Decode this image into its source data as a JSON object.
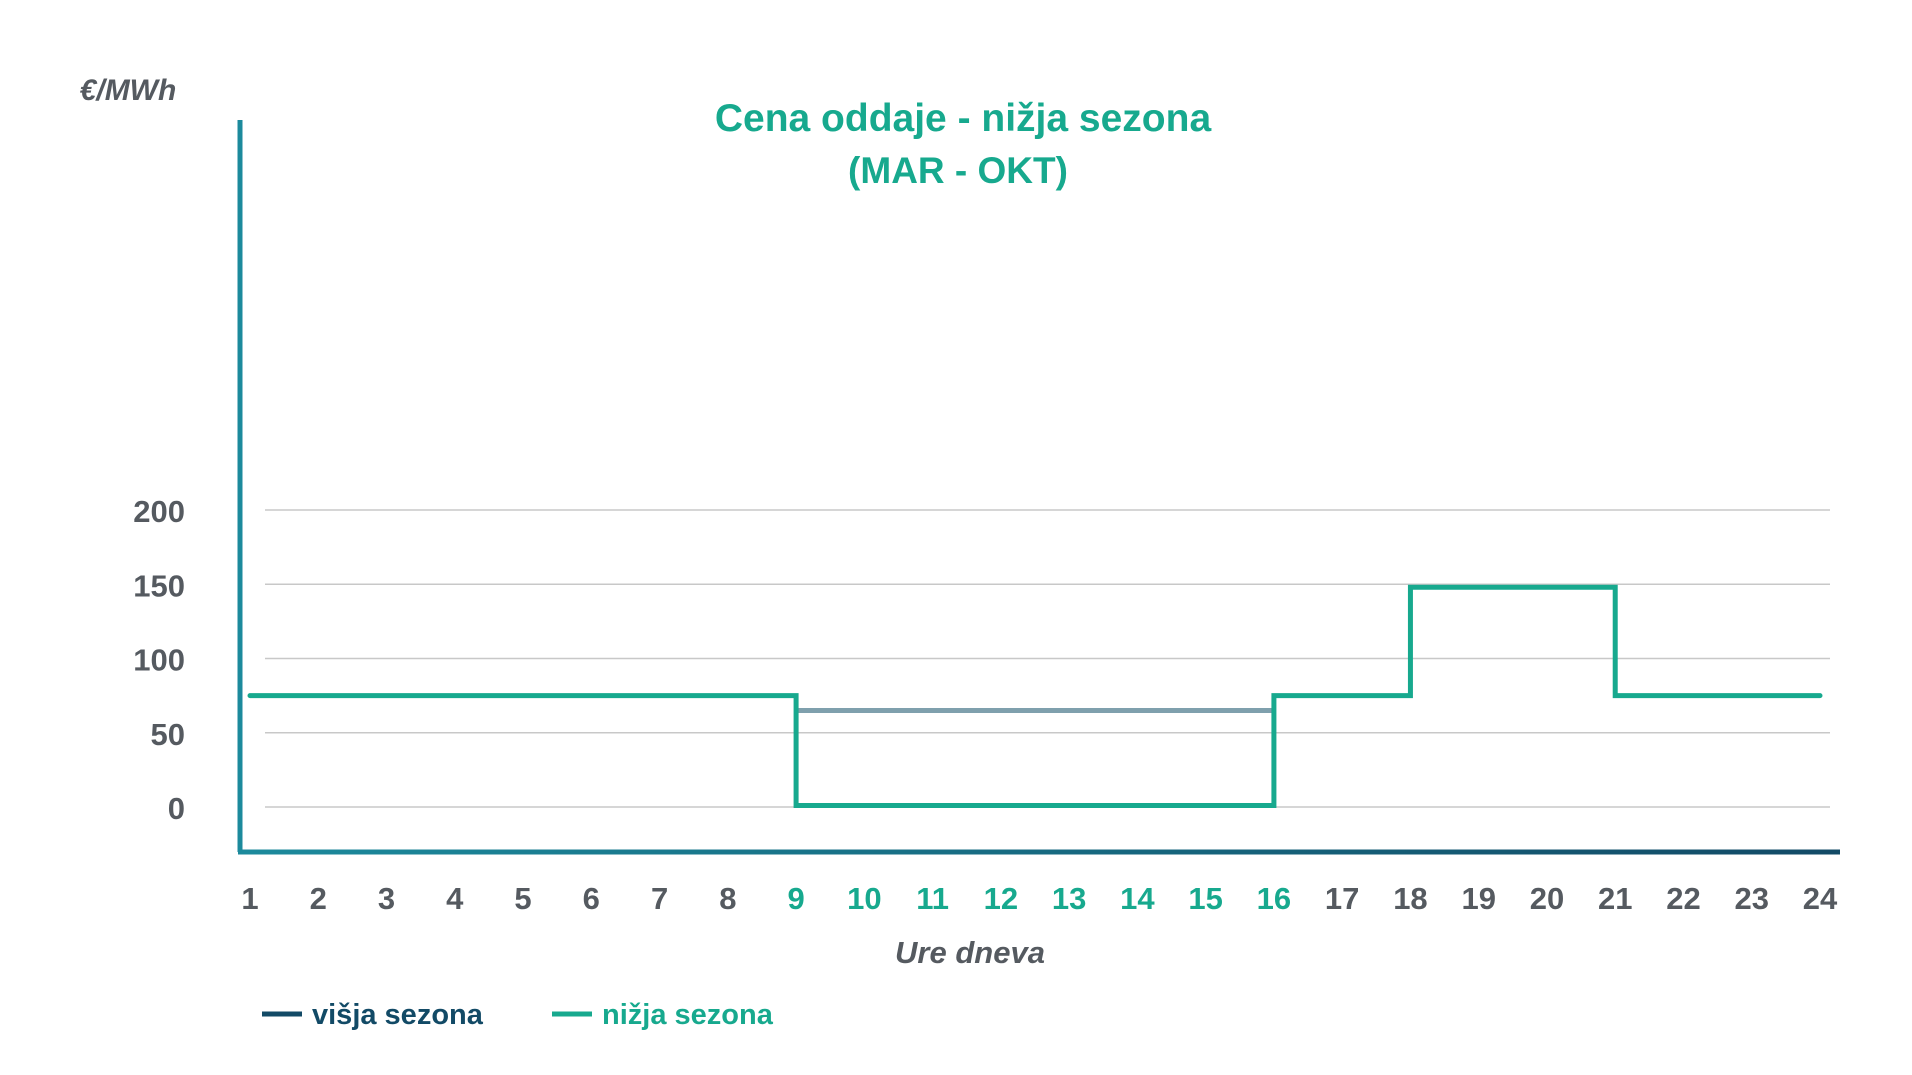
{
  "chart_data": {
    "type": "line",
    "step": true,
    "title": "Cena oddaje - nižja sezona",
    "subtitle": "(MAR - OKT)",
    "ylabel": "€/MWh",
    "xlabel": "Ure dneva",
    "ylim": [
      -15,
      230
    ],
    "yticks": [
      0,
      50,
      100,
      150,
      200
    ],
    "grid": true,
    "x": [
      "1",
      "2",
      "3",
      "4",
      "5",
      "6",
      "7",
      "8",
      "9",
      "10",
      "11",
      "12",
      "13",
      "14",
      "15",
      "16",
      "17",
      "18",
      "19",
      "20",
      "21",
      "22",
      "23",
      "24"
    ],
    "highlighted_x": [
      "9",
      "10",
      "11",
      "12",
      "13",
      "14",
      "15",
      "16"
    ],
    "series": [
      {
        "name": "višja sezona",
        "color": "#7fa0ad",
        "segments": [
          {
            "x_start": "9",
            "x_end": "16",
            "value": 65
          }
        ]
      },
      {
        "name": "nižja sezona",
        "color": "#17a98e",
        "steps": [
          {
            "x_start": "1",
            "x_end": "9",
            "value": 75
          },
          {
            "x_start": "9",
            "x_end": "16",
            "value": 1
          },
          {
            "x_start": "16",
            "x_end": "18",
            "value": 75
          },
          {
            "x_start": "18",
            "x_end": "21",
            "value": 148
          },
          {
            "x_start": "21",
            "x_end": "24",
            "value": 75
          }
        ]
      }
    ],
    "legend": {
      "placement": "bottom-left",
      "entries": [
        {
          "label": "višja sezona",
          "color": "#124a66"
        },
        {
          "label": "nižja sezona",
          "color": "#17a98e"
        }
      ]
    },
    "colors": {
      "title": "#17a98e",
      "tick_text": "#555a60",
      "tick_text_highlight": "#17a98e",
      "grid": "#c8c8c8",
      "axis_start": "#1c8a9c",
      "axis_end": "#124a66"
    }
  }
}
